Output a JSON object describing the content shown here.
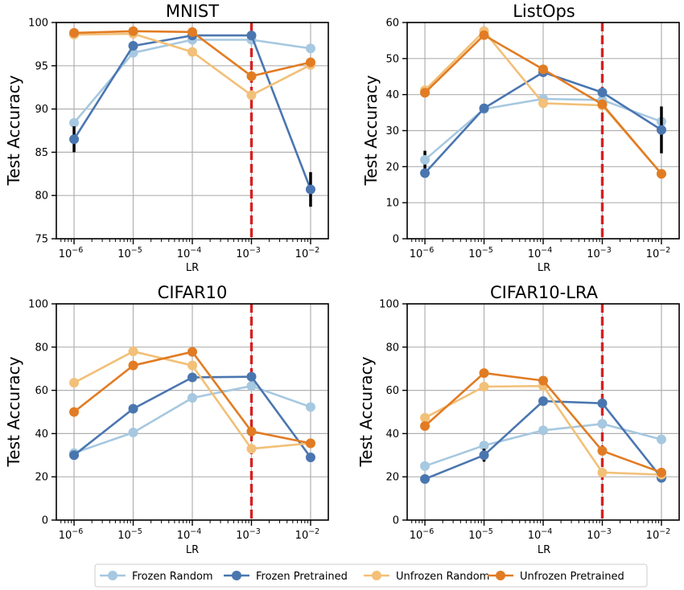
{
  "legend": [
    {
      "name": "Frozen Random",
      "color": "#a6c8e0"
    },
    {
      "name": "Frozen Pretrained",
      "color": "#4a76b0"
    },
    {
      "name": "Unfrozen Random",
      "color": "#f2c078"
    },
    {
      "name": "Unfrozen Pretrained",
      "color": "#e17c24"
    }
  ],
  "reference_line": {
    "x": 0.001,
    "color": "#d62020",
    "style": "dashed"
  },
  "chart_data": [
    {
      "type": "line",
      "title": "MNIST",
      "xlabel": "LR",
      "ylabel": "Test Accuracy",
      "xscale": "log",
      "x": [
        1e-06,
        1e-05,
        0.0001,
        0.001,
        0.01
      ],
      "xticklabels": [
        {
          "base": "10",
          "exp": "−6"
        },
        {
          "base": "10",
          "exp": "−5"
        },
        {
          "base": "10",
          "exp": "−4"
        },
        {
          "base": "10",
          "exp": "−3"
        },
        {
          "base": "10",
          "exp": "−2"
        }
      ],
      "ylim": [
        75,
        100
      ],
      "yticks": [
        75,
        80,
        85,
        90,
        95,
        100
      ],
      "grid": true,
      "series": [
        {
          "name": "Frozen Random",
          "values": [
            88.4,
            96.5,
            98.0,
            98.0,
            97.0
          ],
          "error": [
            0,
            0,
            0,
            0,
            0
          ]
        },
        {
          "name": "Frozen Pretrained",
          "values": [
            86.5,
            97.3,
            98.5,
            98.5,
            80.7
          ],
          "error": [
            1.5,
            0,
            0,
            0,
            2.0
          ]
        },
        {
          "name": "Unfrozen Random",
          "values": [
            98.6,
            98.7,
            96.6,
            91.6,
            95.1
          ],
          "error": [
            0,
            0,
            0,
            0,
            0
          ]
        },
        {
          "name": "Unfrozen Pretrained",
          "values": [
            98.8,
            99.0,
            98.9,
            93.8,
            95.4
          ],
          "error": [
            0,
            0,
            0,
            0,
            0
          ]
        }
      ]
    },
    {
      "type": "line",
      "title": "ListOps",
      "xlabel": "LR",
      "ylabel": "Test Accuracy",
      "xscale": "log",
      "x": [
        1e-06,
        1e-05,
        0.0001,
        0.001,
        0.01
      ],
      "xticklabels": [
        {
          "base": "10",
          "exp": "−6"
        },
        {
          "base": "10",
          "exp": "−5"
        },
        {
          "base": "10",
          "exp": "−4"
        },
        {
          "base": "10",
          "exp": "−3"
        },
        {
          "base": "10",
          "exp": "−2"
        }
      ],
      "ylim": [
        0,
        60
      ],
      "yticks": [
        0,
        10,
        20,
        30,
        40,
        50,
        60
      ],
      "grid": true,
      "series": [
        {
          "name": "Frozen Random",
          "values": [
            21.9,
            36.0,
            38.8,
            38.5,
            32.5
          ],
          "error": [
            2.5,
            0,
            0,
            0,
            0
          ]
        },
        {
          "name": "Frozen Pretrained",
          "values": [
            18.2,
            36.2,
            46.2,
            40.6,
            30.2
          ],
          "error": [
            0,
            0,
            0,
            0,
            6.5
          ]
        },
        {
          "name": "Unfrozen Random",
          "values": [
            41.2,
            57.6,
            37.6,
            37.0,
            18.0
          ],
          "error": [
            0,
            0,
            0,
            0,
            0
          ]
        },
        {
          "name": "Unfrozen Pretrained",
          "values": [
            40.5,
            56.5,
            47.0,
            37.3,
            18.0
          ],
          "error": [
            0,
            0,
            0,
            0,
            0
          ]
        }
      ]
    },
    {
      "type": "line",
      "title": "CIFAR10",
      "xlabel": "LR",
      "ylabel": "Test Accuracy",
      "xscale": "log",
      "x": [
        1e-06,
        1e-05,
        0.0001,
        0.001,
        0.01
      ],
      "xticklabels": [
        {
          "base": "10",
          "exp": "−6"
        },
        {
          "base": "10",
          "exp": "−5"
        },
        {
          "base": "10",
          "exp": "−4"
        },
        {
          "base": "10",
          "exp": "−3"
        },
        {
          "base": "10",
          "exp": "−2"
        }
      ],
      "ylim": [
        0,
        100
      ],
      "yticks": [
        0,
        20,
        40,
        60,
        80,
        100
      ],
      "grid": true,
      "series": [
        {
          "name": "Frozen Random",
          "values": [
            31.0,
            40.5,
            56.5,
            62.0,
            52.3
          ],
          "error": [
            0,
            0,
            0,
            0,
            0
          ]
        },
        {
          "name": "Frozen Pretrained",
          "values": [
            30.0,
            51.5,
            66.0,
            66.3,
            29.0
          ],
          "error": [
            0,
            0,
            0,
            0,
            0
          ]
        },
        {
          "name": "Unfrozen Random",
          "values": [
            63.5,
            78.0,
            71.5,
            33.0,
            35.5
          ],
          "error": [
            0,
            0,
            0,
            0,
            0
          ]
        },
        {
          "name": "Unfrozen Pretrained",
          "values": [
            50.0,
            71.5,
            77.8,
            41.0,
            35.5
          ],
          "error": [
            0,
            0,
            0,
            0,
            0
          ]
        }
      ]
    },
    {
      "type": "line",
      "title": "CIFAR10-LRA",
      "xlabel": "LR",
      "ylabel": "Test Accuracy",
      "xscale": "log",
      "x": [
        1e-06,
        1e-05,
        0.0001,
        0.001,
        0.01
      ],
      "xticklabels": [
        {
          "base": "10",
          "exp": "−6"
        },
        {
          "base": "10",
          "exp": "−5"
        },
        {
          "base": "10",
          "exp": "−4"
        },
        {
          "base": "10",
          "exp": "−3"
        },
        {
          "base": "10",
          "exp": "−2"
        }
      ],
      "ylim": [
        0,
        100
      ],
      "yticks": [
        0,
        20,
        40,
        60,
        80,
        100
      ],
      "grid": true,
      "series": [
        {
          "name": "Frozen Random",
          "values": [
            25.0,
            34.5,
            41.5,
            44.5,
            37.3
          ],
          "error": [
            0,
            0,
            0,
            0,
            0
          ]
        },
        {
          "name": "Frozen Pretrained",
          "values": [
            19.0,
            30.0,
            55.0,
            54.0,
            19.5
          ],
          "error": [
            0,
            3.0,
            0,
            0,
            0
          ]
        },
        {
          "name": "Unfrozen Random",
          "values": [
            47.3,
            61.7,
            62.0,
            22.0,
            21.0
          ],
          "error": [
            0,
            0,
            0,
            0,
            0
          ]
        },
        {
          "name": "Unfrozen Pretrained",
          "values": [
            43.5,
            68.0,
            64.5,
            32.0,
            22.0
          ],
          "error": [
            0,
            0,
            0,
            0,
            0
          ]
        }
      ]
    }
  ]
}
